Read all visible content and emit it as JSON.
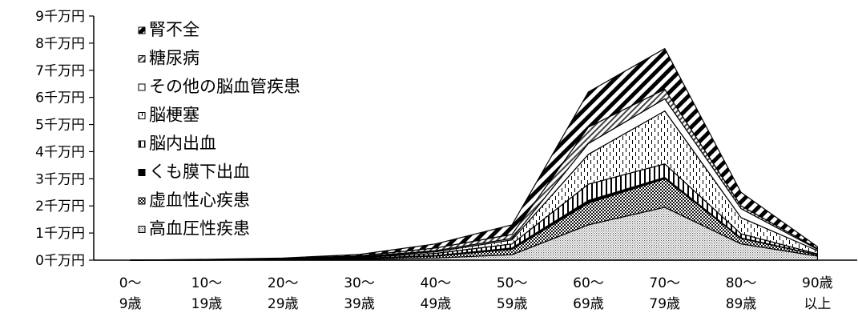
{
  "chart_data": {
    "type": "area",
    "stacked": true,
    "title": "",
    "xlabel": "",
    "ylabel": "",
    "ylim": [
      0,
      9
    ],
    "grid": false,
    "legend_position": "top-left",
    "yticks": [
      "0千万円",
      "1千万円",
      "2千万円",
      "3千万円",
      "4千万円",
      "5千万円",
      "6千万円",
      "7千万円",
      "8千万円",
      "9千万円"
    ],
    "categories": [
      [
        "0～",
        "9歳"
      ],
      [
        "10～",
        "19歳"
      ],
      [
        "20～",
        "29歳"
      ],
      [
        "30～",
        "39歳"
      ],
      [
        "40～",
        "49歳"
      ],
      [
        "50～",
        "59歳"
      ],
      [
        "60～",
        "69歳"
      ],
      [
        "70～",
        "79歳"
      ],
      [
        "80～",
        "89歳"
      ],
      [
        "90歳",
        "以上"
      ]
    ],
    "series": [
      {
        "name": "高血圧性疾患",
        "pattern": "dots",
        "values": [
          0,
          0,
          0.01,
          0.03,
          0.08,
          0.2,
          1.3,
          1.95,
          0.6,
          0.15
        ]
      },
      {
        "name": "虚血性心疾患",
        "pattern": "checker",
        "values": [
          0,
          0,
          0.01,
          0.03,
          0.07,
          0.2,
          0.8,
          1.05,
          0.2,
          0.05
        ]
      },
      {
        "name": "くも膜下出血",
        "pattern": "solid-black",
        "values": [
          0,
          0,
          0,
          0.01,
          0.02,
          0.05,
          0.1,
          0.05,
          0.02,
          0
        ]
      },
      {
        "name": "脳内出血",
        "pattern": "vertical-lines",
        "values": [
          0,
          0.01,
          0.01,
          0.03,
          0.08,
          0.15,
          0.6,
          0.5,
          0.15,
          0.03
        ]
      },
      {
        "name": "脳梗塞",
        "pattern": "dashed-vertical",
        "values": [
          0,
          0,
          0.01,
          0.02,
          0.06,
          0.15,
          1.1,
          1.95,
          0.6,
          0.12
        ]
      },
      {
        "name": "その他の脳血管疾患",
        "pattern": "white",
        "values": [
          0,
          0,
          0.01,
          0.01,
          0.04,
          0.05,
          0.4,
          0.45,
          0.33,
          0.05
        ]
      },
      {
        "name": "糖尿病",
        "pattern": "diagonal-fine",
        "values": [
          0,
          0.01,
          0.01,
          0.03,
          0.1,
          0.15,
          0.6,
          0.35,
          0.1,
          0.03
        ]
      },
      {
        "name": "腎不全",
        "pattern": "diagonal-bold",
        "values": [
          0,
          0.01,
          0.02,
          0.05,
          0.15,
          0.35,
          1.3,
          1.5,
          0.5,
          0.07
        ]
      }
    ],
    "legend_order": [
      "腎不全",
      "糖尿病",
      "その他の脳血管疾患",
      "脳梗塞",
      "脳内出血",
      "くも膜下出血",
      "虚血性心疾患",
      "高血圧性疾患"
    ]
  }
}
